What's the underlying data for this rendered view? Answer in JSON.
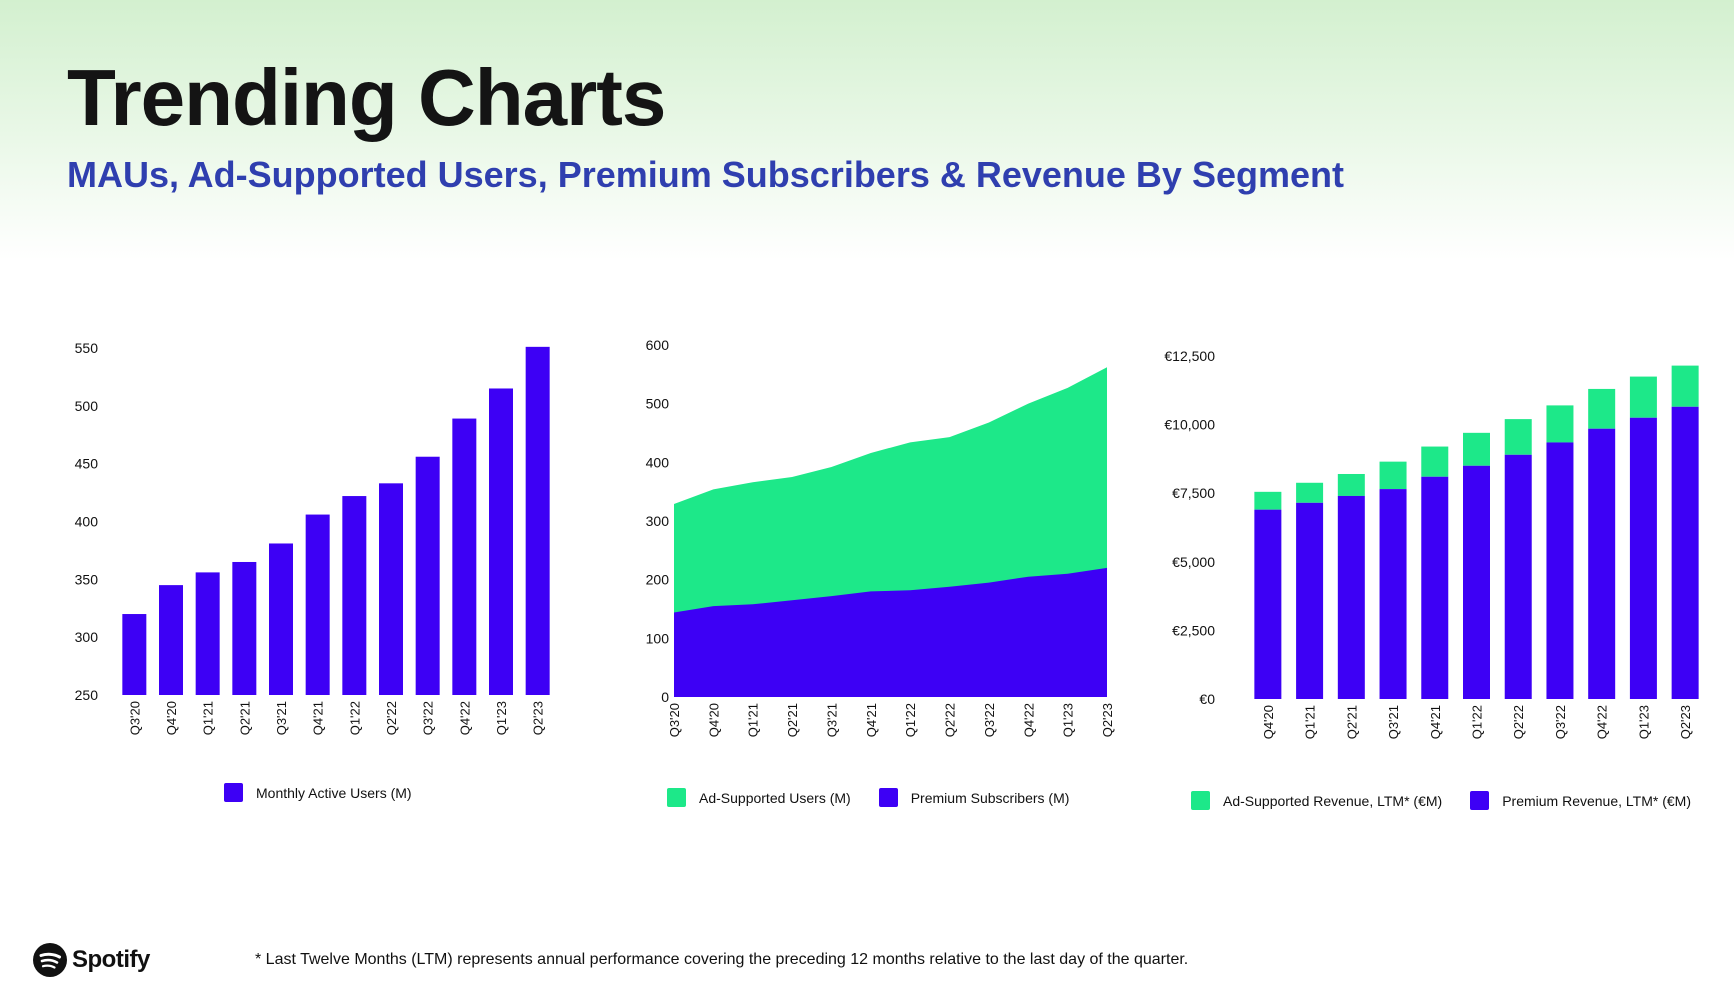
{
  "header": {
    "title": "Trending Charts",
    "subtitle": "MAUs, Ad-Supported Users, Premium Subscribers & Revenue By Segment"
  },
  "colors": {
    "purple": "#3d00f5",
    "green": "#1de889",
    "subtitle": "#2f3faf"
  },
  "chart_data": [
    {
      "type": "bar",
      "categories": [
        "Q3'20",
        "Q4'20",
        "Q1'21",
        "Q2'21",
        "Q3'21",
        "Q4'21",
        "Q1'22",
        "Q2'22",
        "Q3'22",
        "Q4'22",
        "Q1'23",
        "Q2'23"
      ],
      "series": [
        {
          "name": "Monthly Active Users (M)",
          "values": [
            320,
            345,
            356,
            365,
            381,
            406,
            422,
            433,
            456,
            489,
            515,
            551
          ]
        }
      ],
      "ylim": [
        250,
        550
      ],
      "yticks": [
        "550",
        "500",
        "450",
        "400",
        "350",
        "300",
        "250"
      ],
      "legend_position": "bottom"
    },
    {
      "type": "area",
      "stacked": true,
      "categories": [
        "Q3'20",
        "Q4'20",
        "Q1'21",
        "Q2'21",
        "Q3'21",
        "Q4'21",
        "Q1'22",
        "Q2'22",
        "Q3'22",
        "Q4'22",
        "Q1'23",
        "Q2'23"
      ],
      "series": [
        {
          "name": "Ad-Supported Users (M)",
          "values": [
            185,
            199,
            208,
            210,
            220,
            236,
            252,
            255,
            273,
            295,
            317,
            342
          ]
        },
        {
          "name": "Premium Subscribers (M)",
          "values": [
            144,
            155,
            158,
            165,
            172,
            180,
            182,
            188,
            195,
            205,
            210,
            220
          ]
        }
      ],
      "ylim": [
        0,
        600
      ],
      "yticks": [
        "600",
        "500",
        "400",
        "300",
        "200",
        "100",
        "0"
      ],
      "legend_position": "bottom"
    },
    {
      "type": "bar",
      "stacked": true,
      "categories": [
        "Q4'20",
        "Q1'21",
        "Q2'21",
        "Q3'21",
        "Q4'21",
        "Q1'22",
        "Q2'22",
        "Q3'22",
        "Q4'22",
        "Q1'23",
        "Q2'23"
      ],
      "series": [
        {
          "name": "Ad-Supported Revenue, LTM* (€M)",
          "values": [
            650,
            730,
            800,
            1000,
            1100,
            1200,
            1300,
            1350,
            1450,
            1500,
            1500
          ]
        },
        {
          "name": "Premium Revenue, LTM* (€M)",
          "values": [
            6900,
            7150,
            7400,
            7650,
            8100,
            8500,
            8900,
            9350,
            9850,
            10250,
            10650
          ]
        }
      ],
      "ylim": [
        0,
        12500
      ],
      "yticks": [
        "€12,500",
        "€10,000",
        "€7,500",
        "€5,000",
        "€2,500",
        "€0"
      ],
      "legend_position": "bottom"
    }
  ],
  "legends": {
    "chart1": [
      "Monthly Active Users (M)"
    ],
    "chart2": [
      "Ad-Supported Users (M)",
      "Premium Subscribers (M)"
    ],
    "chart3": [
      "Ad-Supported Revenue, LTM* (€M)",
      "Premium Revenue, LTM* (€M)"
    ]
  },
  "footer": {
    "logo_text": "Spotify",
    "logo_icon": "spotify-logo-icon",
    "footnote": "* Last Twelve Months (LTM) represents annual performance covering the preceding 12 months relative to the last day of the quarter."
  }
}
